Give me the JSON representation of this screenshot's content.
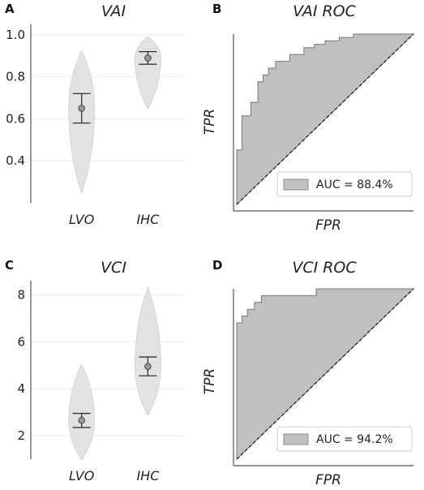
{
  "chart_data": [
    {
      "panel": "A",
      "type": "violin",
      "title": "VAI",
      "categories": [
        "LVO",
        "IHC"
      ],
      "ylim": [
        0.2,
        1.05
      ],
      "yticks": [
        "0.4",
        "0.6",
        "0.8",
        "1.0"
      ],
      "grid": true,
      "series": [
        {
          "category": "LVO",
          "min": 0.25,
          "max": 0.92,
          "mean": 0.65,
          "ci_low": 0.58,
          "ci_high": 0.72
        },
        {
          "category": "IHC",
          "min": 0.65,
          "max": 0.99,
          "mean": 0.89,
          "ci_low": 0.86,
          "ci_high": 0.92
        }
      ]
    },
    {
      "panel": "B",
      "type": "area",
      "title": "VAI ROC",
      "xlabel": "FPR",
      "ylabel": "TPR",
      "xlim": [
        0,
        1
      ],
      "ylim": [
        0,
        1
      ],
      "legend": "AUC = 88.4%",
      "legend_position": "bottom-right",
      "auc": 88.4,
      "roc": [
        [
          0,
          0
        ],
        [
          0,
          0.32
        ],
        [
          0.03,
          0.32
        ],
        [
          0.03,
          0.52
        ],
        [
          0.08,
          0.52
        ],
        [
          0.08,
          0.6
        ],
        [
          0.12,
          0.6
        ],
        [
          0.12,
          0.72
        ],
        [
          0.15,
          0.72
        ],
        [
          0.15,
          0.76
        ],
        [
          0.18,
          0.76
        ],
        [
          0.18,
          0.8
        ],
        [
          0.22,
          0.8
        ],
        [
          0.22,
          0.84
        ],
        [
          0.3,
          0.84
        ],
        [
          0.3,
          0.88
        ],
        [
          0.38,
          0.88
        ],
        [
          0.38,
          0.92
        ],
        [
          0.44,
          0.92
        ],
        [
          0.44,
          0.94
        ],
        [
          0.5,
          0.94
        ],
        [
          0.5,
          0.96
        ],
        [
          0.58,
          0.96
        ],
        [
          0.58,
          0.98
        ],
        [
          0.66,
          0.98
        ],
        [
          0.66,
          1.0
        ],
        [
          1.0,
          1.0
        ]
      ]
    },
    {
      "panel": "C",
      "type": "violin",
      "title": "VCI",
      "categories": [
        "LVO",
        "IHC"
      ],
      "ylim": [
        1.0,
        8.6
      ],
      "yticks": [
        "2",
        "4",
        "6",
        "8"
      ],
      "grid": true,
      "series": [
        {
          "category": "LVO",
          "min": 1.0,
          "max": 5.0,
          "mean": 2.65,
          "ci_low": 2.35,
          "ci_high": 2.95
        },
        {
          "category": "IHC",
          "min": 2.9,
          "max": 8.3,
          "mean": 4.95,
          "ci_low": 4.55,
          "ci_high": 5.35
        }
      ]
    },
    {
      "panel": "D",
      "type": "area",
      "title": "VCI ROC",
      "xlabel": "FPR",
      "ylabel": "TPR",
      "xlim": [
        0,
        1
      ],
      "ylim": [
        0,
        1
      ],
      "legend": "AUC = 94.2%",
      "legend_position": "bottom-right",
      "auc": 94.2,
      "roc": [
        [
          0,
          0
        ],
        [
          0,
          0.8
        ],
        [
          0.03,
          0.8
        ],
        [
          0.03,
          0.84
        ],
        [
          0.06,
          0.84
        ],
        [
          0.06,
          0.88
        ],
        [
          0.1,
          0.88
        ],
        [
          0.1,
          0.92
        ],
        [
          0.14,
          0.92
        ],
        [
          0.14,
          0.96
        ],
        [
          0.45,
          0.96
        ],
        [
          0.45,
          1.0
        ],
        [
          1.0,
          1.0
        ]
      ]
    }
  ]
}
